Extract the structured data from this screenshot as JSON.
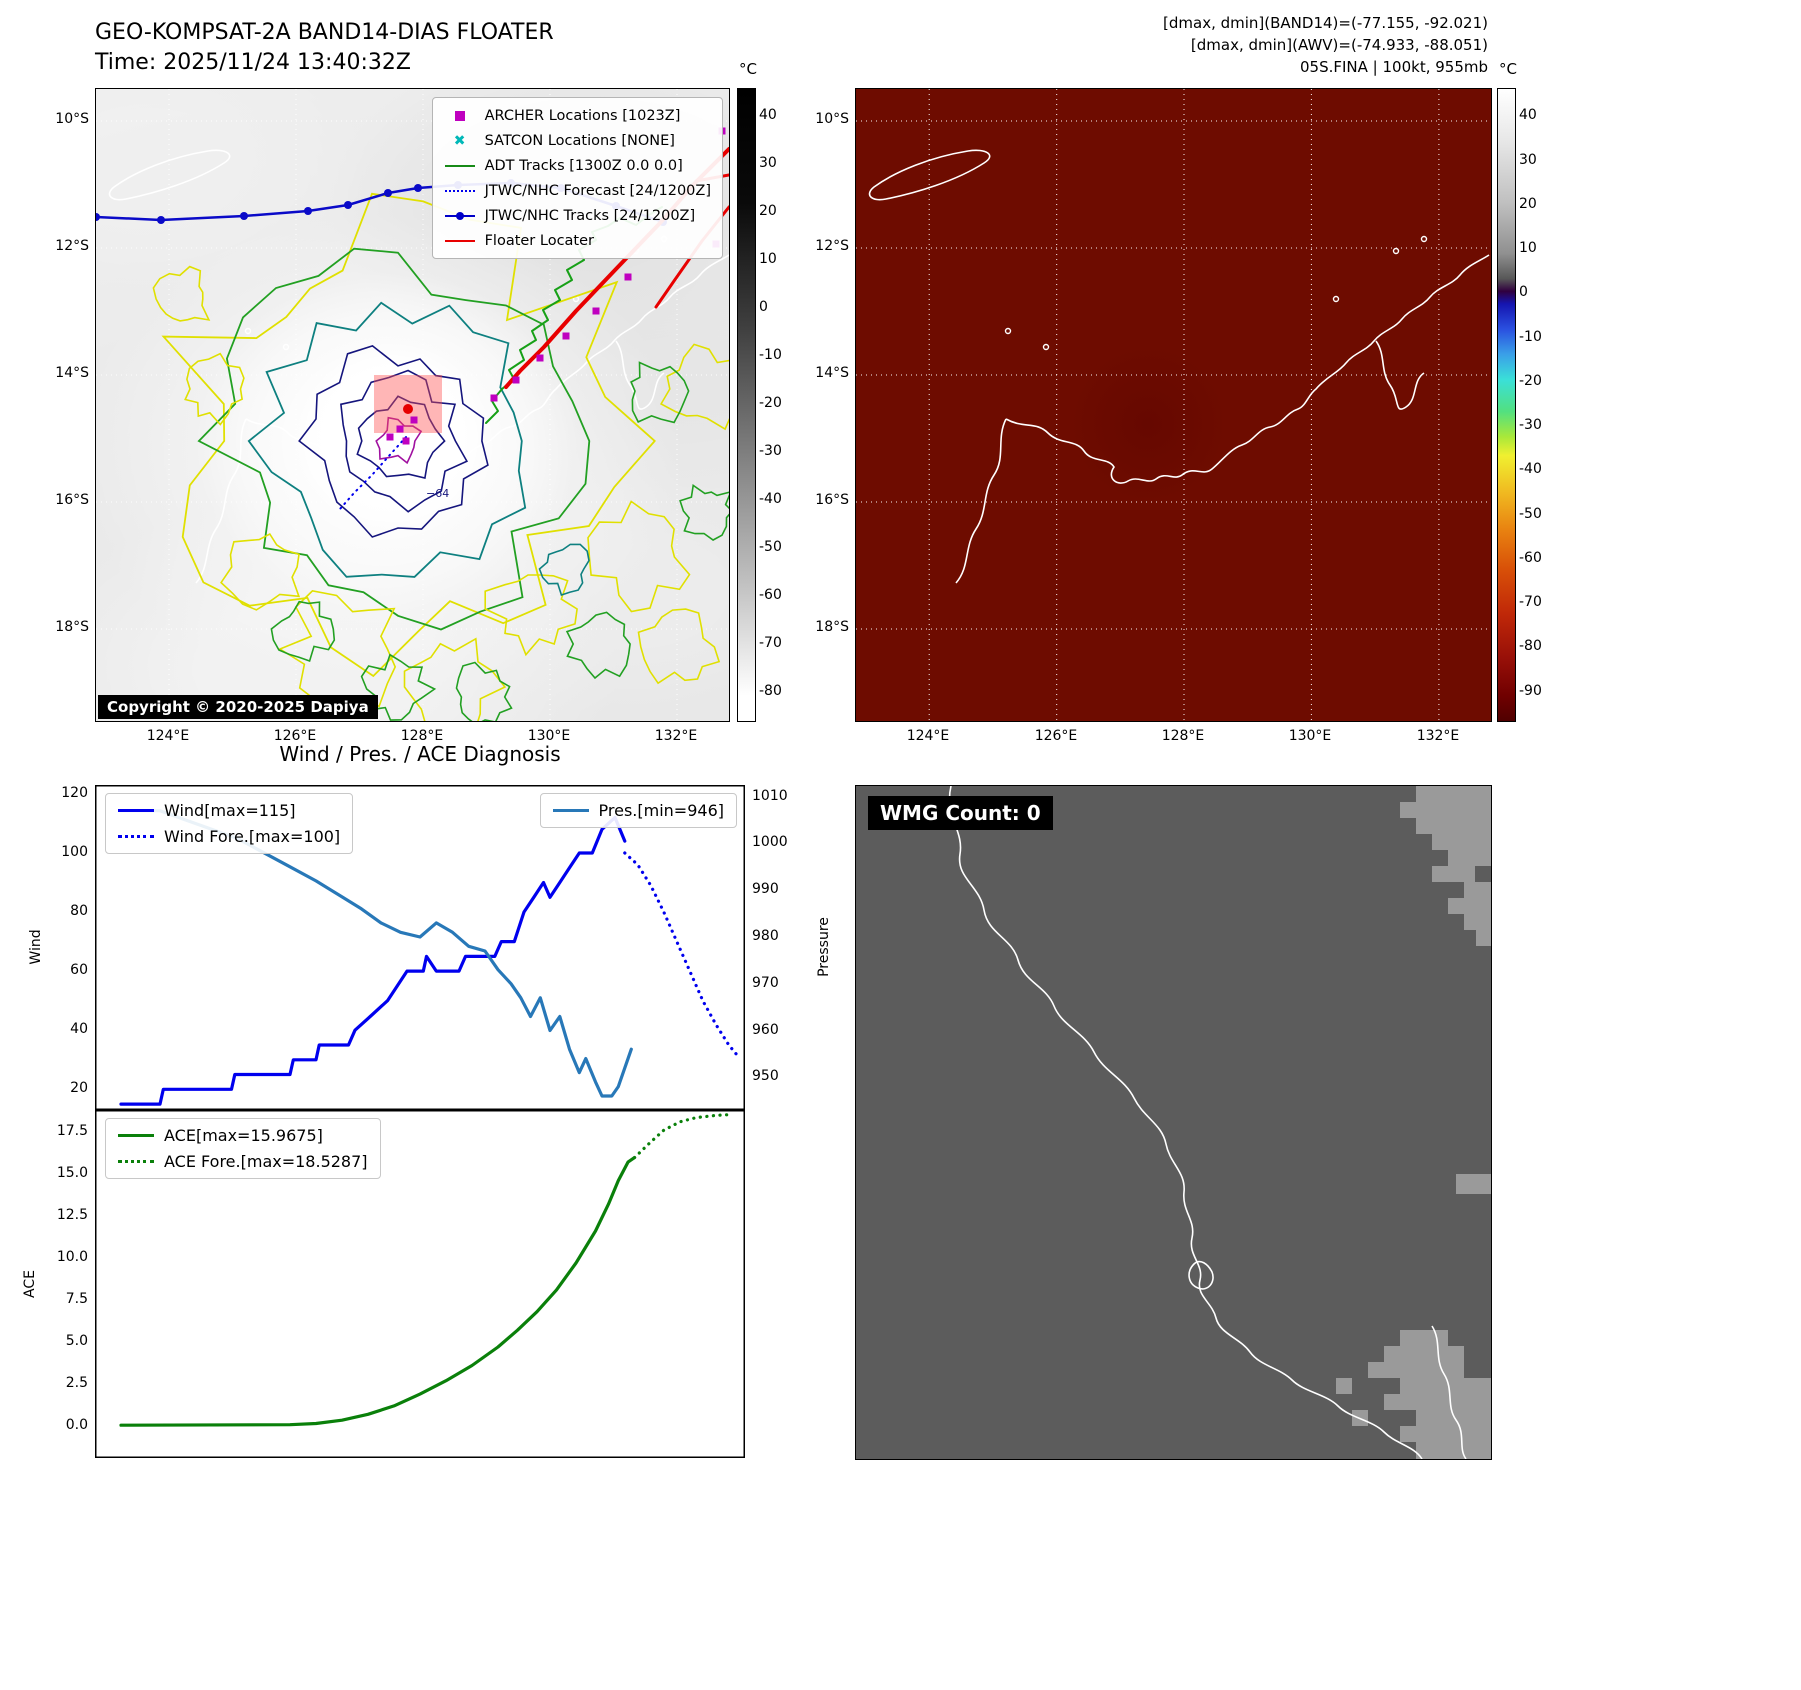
{
  "panel_band14": {
    "title": "GEO-KOMPSAT-2A BAND14-DIAS FLOATER",
    "time": "Time: 2025/11/24 13:40:32Z",
    "copyright": "Copyright © 2020-2025 Dapiya",
    "contour_label": "−64",
    "legend": [
      {
        "marker": "square",
        "color": "#bf00bf",
        "label": "ARCHER Locations [1023Z]"
      },
      {
        "marker": "x",
        "color": "#00b8b8",
        "label": "SATCON Locations [NONE]"
      },
      {
        "marker": "line",
        "color": "#178a17",
        "label": "ADT Tracks [1300Z 0.0 0.0]"
      },
      {
        "marker": "dotted",
        "color": "#0000ee",
        "label": "JTWC/NHC Forecast [24/1200Z]"
      },
      {
        "marker": "line-dot",
        "color": "#0000c8",
        "label": "JTWC/NHC Tracks [24/1200Z]"
      },
      {
        "marker": "line",
        "color": "#e80000",
        "label": "Floater Locater"
      }
    ],
    "lat_ticks": [
      "10°S",
      "12°S",
      "14°S",
      "16°S",
      "18°S"
    ],
    "lon_ticks": [
      "124°E",
      "126°E",
      "128°E",
      "130°E",
      "132°E"
    ],
    "colorbar": {
      "unit": "°C",
      "ticks": [
        "40",
        "30",
        "20",
        "10",
        "0",
        "-10",
        "-20",
        "-30",
        "-40",
        "-50",
        "-60",
        "-70",
        "-80"
      ]
    }
  },
  "panel_awv": {
    "header_lines": [
      "[dmax, dmin](BAND14)=(-77.155, -92.021)",
      "[dmax, dmin](AWV)=(-74.933, -88.051)",
      "05S.FINA | 100kt, 955mb"
    ],
    "lat_ticks": [
      "10°S",
      "12°S",
      "14°S",
      "16°S",
      "18°S"
    ],
    "lon_ticks": [
      "124°E",
      "126°E",
      "128°E",
      "130°E",
      "132°E"
    ],
    "colorbar": {
      "unit": "°C",
      "ticks": [
        "40",
        "30",
        "20",
        "10",
        "0",
        "-10",
        "-20",
        "-30",
        "-40",
        "-50",
        "-60",
        "-70",
        "-80",
        "-90"
      ]
    }
  },
  "diagnosis": {
    "title": "Wind / Pres. / ACE Diagnosis"
  },
  "wmg": {
    "label": "WMG Count: 0"
  },
  "chart_data": [
    {
      "type": "line",
      "title": "Wind / Pres. diagnosis (top subplot)",
      "x_range": [
        0,
        1
      ],
      "grid": false,
      "left_axis": {
        "label": "Wind",
        "range": [
          13,
          123
        ],
        "ticks": [
          "20",
          "40",
          "60",
          "80",
          "100",
          "120"
        ]
      },
      "right_axis": {
        "label": "Pressure",
        "range": [
          943,
          1012.5
        ],
        "ticks": [
          "950",
          "960",
          "970",
          "980",
          "990",
          "1000",
          "1010"
        ]
      },
      "series": [
        {
          "name": "Wind[max=115]",
          "axis": "left",
          "style": "solid",
          "color": "#0000ee",
          "legend_box": "tl",
          "points": [
            [
              0.04,
              15
            ],
            [
              0.1,
              15
            ],
            [
              0.105,
              20
            ],
            [
              0.21,
              20
            ],
            [
              0.215,
              25
            ],
            [
              0.3,
              25
            ],
            [
              0.305,
              30
            ],
            [
              0.34,
              30
            ],
            [
              0.345,
              35
            ],
            [
              0.39,
              35
            ],
            [
              0.4,
              40
            ],
            [
              0.425,
              45
            ],
            [
              0.45,
              50
            ],
            [
              0.465,
              55
            ],
            [
              0.48,
              60
            ],
            [
              0.505,
              60
            ],
            [
              0.51,
              65
            ],
            [
              0.525,
              60
            ],
            [
              0.56,
              60
            ],
            [
              0.57,
              65
            ],
            [
              0.615,
              65
            ],
            [
              0.625,
              70
            ],
            [
              0.645,
              70
            ],
            [
              0.66,
              80
            ],
            [
              0.675,
              85
            ],
            [
              0.69,
              90
            ],
            [
              0.7,
              85
            ],
            [
              0.715,
              90
            ],
            [
              0.73,
              95
            ],
            [
              0.745,
              100
            ],
            [
              0.765,
              100
            ],
            [
              0.78,
              108
            ],
            [
              0.8,
              112
            ],
            [
              0.815,
              104
            ]
          ]
        },
        {
          "name": "Wind Fore.[max=100]",
          "axis": "left",
          "style": "dotted",
          "color": "#0000ee",
          "legend_box": "tl",
          "points": [
            [
              0.815,
              100
            ],
            [
              0.835,
              96
            ],
            [
              0.855,
              89
            ],
            [
              0.875,
              80
            ],
            [
              0.895,
              70
            ],
            [
              0.915,
              60
            ],
            [
              0.935,
              50
            ],
            [
              0.955,
              42
            ],
            [
              0.975,
              35
            ],
            [
              0.99,
              31
            ]
          ]
        },
        {
          "name": "Pres.[min=946]",
          "axis": "right",
          "style": "solid",
          "color": "#2878b8",
          "legend_box": "tr",
          "points": [
            [
              0.04,
              1007
            ],
            [
              0.1,
              1007
            ],
            [
              0.14,
              1005
            ],
            [
              0.18,
              1003
            ],
            [
              0.22,
              1001
            ],
            [
              0.26,
              998
            ],
            [
              0.3,
              995
            ],
            [
              0.34,
              992
            ],
            [
              0.375,
              989
            ],
            [
              0.41,
              986
            ],
            [
              0.44,
              983
            ],
            [
              0.47,
              981
            ],
            [
              0.5,
              980
            ],
            [
              0.525,
              983
            ],
            [
              0.55,
              981
            ],
            [
              0.575,
              978
            ],
            [
              0.6,
              977
            ],
            [
              0.62,
              973
            ],
            [
              0.64,
              970
            ],
            [
              0.655,
              967
            ],
            [
              0.67,
              963
            ],
            [
              0.685,
              967
            ],
            [
              0.7,
              960
            ],
            [
              0.715,
              963
            ],
            [
              0.73,
              956
            ],
            [
              0.745,
              951
            ],
            [
              0.755,
              954
            ],
            [
              0.77,
              949
            ],
            [
              0.78,
              946
            ],
            [
              0.795,
              946
            ],
            [
              0.805,
              948
            ],
            [
              0.825,
              956
            ]
          ]
        }
      ]
    },
    {
      "type": "line",
      "title": "ACE diagnosis (bottom subplot)",
      "x_range": [
        0,
        1
      ],
      "grid": false,
      "left_axis": {
        "label": "ACE",
        "range": [
          -1.9,
          18.8
        ],
        "ticks": [
          "0.0",
          "2.5",
          "5.0",
          "7.5",
          "10.0",
          "12.5",
          "15.0",
          "17.5"
        ]
      },
      "series": [
        {
          "name": "ACE[max=15.9675]",
          "axis": "left",
          "style": "solid",
          "color": "#0a800a",
          "legend_box": "tl",
          "points": [
            [
              0.04,
              0.05
            ],
            [
              0.3,
              0.08
            ],
            [
              0.34,
              0.15
            ],
            [
              0.38,
              0.35
            ],
            [
              0.42,
              0.7
            ],
            [
              0.46,
              1.2
            ],
            [
              0.5,
              1.9
            ],
            [
              0.54,
              2.7
            ],
            [
              0.58,
              3.6
            ],
            [
              0.62,
              4.7
            ],
            [
              0.65,
              5.7
            ],
            [
              0.68,
              6.8
            ],
            [
              0.71,
              8.1
            ],
            [
              0.74,
              9.7
            ],
            [
              0.77,
              11.6
            ],
            [
              0.79,
              13.2
            ],
            [
              0.805,
              14.6
            ],
            [
              0.82,
              15.7
            ],
            [
              0.83,
              15.97
            ]
          ]
        },
        {
          "name": "ACE Fore.[max=18.5287]",
          "axis": "left",
          "style": "dotted",
          "color": "#0a800a",
          "legend_box": "tl",
          "points": [
            [
              0.83,
              15.97
            ],
            [
              0.855,
              16.9
            ],
            [
              0.875,
              17.6
            ],
            [
              0.9,
              18.1
            ],
            [
              0.925,
              18.35
            ],
            [
              0.955,
              18.48
            ],
            [
              0.98,
              18.53
            ]
          ]
        }
      ]
    }
  ]
}
